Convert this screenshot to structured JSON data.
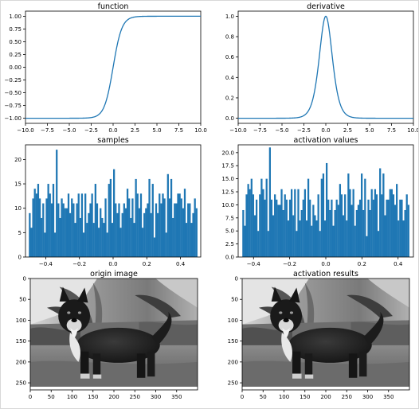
{
  "colors": {
    "line": "#1f77b4",
    "bar": "#1f77b4",
    "axis": "#000000",
    "text": "#000000"
  },
  "chart_data": [
    {
      "type": "line",
      "title": "function",
      "function": "tanh",
      "xlim": [
        -10,
        10
      ],
      "ylim": [
        -1.1,
        1.1
      ],
      "xticks": [
        -10,
        -7.5,
        -5,
        -2.5,
        0,
        2.5,
        5,
        7.5,
        10
      ],
      "xtick_labels": [
        "−10.0",
        "−7.5",
        "−5.0",
        "−2.5",
        "0.0",
        "2.5",
        "5.0",
        "7.5",
        "10.0"
      ],
      "yticks": [
        -1,
        -0.75,
        -0.5,
        -0.25,
        0,
        0.25,
        0.5,
        0.75,
        1
      ],
      "ytick_labels": [
        "−1.00",
        "−0.75",
        "−0.50",
        "−0.25",
        "0.00",
        "0.25",
        "0.50",
        "0.75",
        "1.00"
      ],
      "xlabel": "",
      "ylabel": "",
      "grid": false
    },
    {
      "type": "line",
      "title": "derivative",
      "function": "1 - tanh^2",
      "xlim": [
        -10,
        10
      ],
      "ylim": [
        -0.05,
        1.05
      ],
      "xticks": [
        -10,
        -7.5,
        -5,
        -2.5,
        0,
        2.5,
        5,
        7.5,
        10
      ],
      "xtick_labels": [
        "−10.0",
        "−7.5",
        "−5.0",
        "−2.5",
        "0.0",
        "2.5",
        "5.0",
        "7.5",
        "10.0"
      ],
      "yticks": [
        0,
        0.2,
        0.4,
        0.6,
        0.8,
        1.0
      ],
      "ytick_labels": [
        "0.0",
        "0.2",
        "0.4",
        "0.6",
        "0.8",
        "1.0"
      ],
      "xlabel": "",
      "ylabel": "",
      "grid": false
    },
    {
      "type": "bar",
      "title": "samples",
      "bin_start": -0.5,
      "bin_width": 0.01,
      "values": [
        9,
        6,
        12,
        14,
        13,
        15,
        12,
        8,
        11,
        5,
        12,
        15,
        13,
        11,
        15,
        5,
        22,
        11,
        8,
        12,
        11,
        10,
        10,
        13,
        9,
        12,
        11,
        7,
        11,
        13,
        8,
        13,
        5,
        13,
        7,
        9,
        11,
        13,
        7,
        15,
        11,
        6,
        10,
        8,
        7,
        12,
        5,
        15,
        16,
        7,
        18,
        11,
        9,
        11,
        6,
        9,
        11,
        10,
        14,
        12,
        8,
        12,
        7,
        16,
        13,
        10,
        13,
        6,
        9,
        10,
        11,
        16,
        9,
        15,
        4,
        11,
        9,
        13,
        11,
        13,
        12,
        5,
        17,
        12,
        16,
        8,
        11,
        11,
        13,
        13,
        12,
        10,
        14,
        7,
        11,
        11,
        7,
        9,
        12,
        10
      ],
      "xlim": [
        -0.52,
        0.52
      ],
      "ylim": [
        0,
        23
      ],
      "xticks": [
        -0.4,
        -0.2,
        0,
        0.2,
        0.4
      ],
      "xtick_labels": [
        "−0.4",
        "−0.2",
        "0.0",
        "0.2",
        "0.4"
      ],
      "yticks": [
        0,
        5,
        10,
        15,
        20
      ],
      "ytick_labels": [
        "0",
        "5",
        "10",
        "15",
        "20"
      ],
      "xlabel": "",
      "ylabel": "",
      "grid": false
    },
    {
      "type": "bar",
      "title": "activation values",
      "bin_start": -0.462,
      "bin_width": 0.00924,
      "values": [
        9,
        6,
        12,
        14,
        13,
        15,
        12,
        8,
        11,
        5,
        12,
        15,
        13,
        11,
        15,
        5,
        21,
        11,
        8,
        12,
        11,
        10,
        10,
        13,
        9,
        12,
        11,
        7,
        11,
        13,
        8,
        13,
        5,
        13,
        7,
        9,
        11,
        13,
        7,
        15,
        11,
        6,
        10,
        8,
        7,
        12,
        5,
        15,
        16,
        7,
        18,
        11,
        9,
        11,
        6,
        9,
        11,
        10,
        14,
        12,
        8,
        12,
        7,
        16,
        13,
        10,
        13,
        6,
        9,
        10,
        11,
        16,
        9,
        15,
        4,
        11,
        9,
        13,
        11,
        13,
        12,
        5,
        17,
        12,
        16,
        8,
        11,
        11,
        13,
        13,
        12,
        10,
        14,
        7,
        11,
        11,
        7,
        9,
        12,
        10
      ],
      "xlim": [
        -0.485,
        0.485
      ],
      "ylim": [
        0,
        21.5
      ],
      "xticks": [
        -0.4,
        -0.2,
        0,
        0.2,
        0.4
      ],
      "xtick_labels": [
        "−0.4",
        "−0.2",
        "0.0",
        "0.2",
        "0.4"
      ],
      "yticks": [
        0,
        2.5,
        5,
        7.5,
        10,
        12.5,
        15,
        17.5,
        20
      ],
      "ytick_labels": [
        "0.0",
        "2.5",
        "5.0",
        "7.5",
        "10.0",
        "12.5",
        "15.0",
        "17.5",
        "20.0"
      ],
      "xlabel": "",
      "ylabel": "",
      "grid": false
    },
    {
      "type": "image",
      "title": "origin image",
      "subject": "grayscale photo of a black and white dog standing on grass",
      "width": 400,
      "height": 267,
      "xticks": [
        0,
        50,
        100,
        150,
        200,
        250,
        300,
        350
      ],
      "xtick_labels": [
        "0",
        "50",
        "100",
        "150",
        "200",
        "250",
        "300",
        "350"
      ],
      "yticks": [
        0,
        50,
        100,
        150,
        200,
        250
      ],
      "ytick_labels": [
        "0",
        "50",
        "100",
        "150",
        "200",
        "250"
      ]
    },
    {
      "type": "image",
      "title": "activation results",
      "subject": "grayscale photo of a black and white dog standing on grass",
      "width": 400,
      "height": 267,
      "xticks": [
        0,
        50,
        100,
        150,
        200,
        250,
        300,
        350
      ],
      "xtick_labels": [
        "0",
        "50",
        "100",
        "150",
        "200",
        "250",
        "300",
        "350"
      ],
      "yticks": [
        0,
        50,
        100,
        150,
        200,
        250
      ],
      "ytick_labels": [
        "0",
        "50",
        "100",
        "150",
        "200",
        "250"
      ]
    }
  ]
}
